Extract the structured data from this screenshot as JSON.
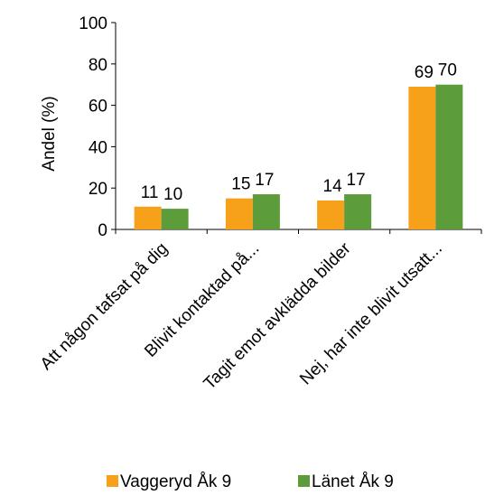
{
  "chart_data": {
    "type": "bar",
    "title": "",
    "xlabel": "",
    "ylabel": "Andel (%)",
    "ylim": [
      0,
      100
    ],
    "yticks": [
      "0",
      "20",
      "40",
      "60",
      "80",
      "100"
    ],
    "grid": false,
    "legend_position": "bottom",
    "categories": [
      "Att någon tafsat på dig",
      "Blivit kontaktad på...",
      "Tagit emot avklädda bilder",
      "Nej, har inte blivit utsatt..."
    ],
    "series": [
      {
        "name": "Vaggeryd Åk 9",
        "color": "#f7a11a",
        "values": [
          11,
          15,
          14,
          69
        ]
      },
      {
        "name": "Länet Åk 9",
        "color": "#5c9c3a",
        "values": [
          10,
          17,
          17,
          70
        ]
      }
    ]
  }
}
